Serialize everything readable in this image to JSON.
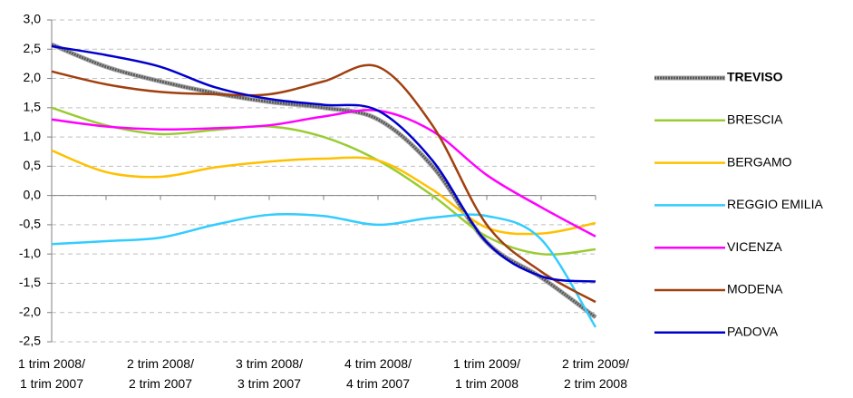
{
  "chart_data": {
    "type": "line",
    "categories": [
      "1 trim 2008/\n1 trim 2007",
      null,
      "2 trim 2008/\n2 trim 2007",
      null,
      "3 trim 2008/\n3 trim 2007",
      null,
      "4 trim 2008/\n4 trim 2007",
      null,
      "1 trim 2009/\n1 trim 2008",
      null,
      "2 trim 2009/\n2 trim 2008"
    ],
    "series": [
      {
        "name": "TREVISO",
        "color": "#595959",
        "values": [
          2.58,
          2.2,
          1.95,
          1.75,
          1.6,
          1.5,
          1.3,
          0.5,
          -0.8,
          -1.4,
          -2.08
        ]
      },
      {
        "name": "BRESCIA",
        "color": "#99cc33",
        "values": [
          1.5,
          1.2,
          1.05,
          1.12,
          1.18,
          1.0,
          0.6,
          0.0,
          -0.7,
          -1.0,
          -0.92
        ]
      },
      {
        "name": "BERGAMO",
        "color": "#ffc000",
        "values": [
          0.77,
          0.4,
          0.32,
          0.48,
          0.58,
          0.63,
          0.6,
          0.1,
          -0.55,
          -0.65,
          -0.47
        ]
      },
      {
        "name": "REGGIO EMILIA",
        "color": "#33ccff",
        "values": [
          -0.83,
          -0.78,
          -0.72,
          -0.5,
          -0.33,
          -0.35,
          -0.5,
          -0.38,
          -0.35,
          -0.75,
          -2.25
        ]
      },
      {
        "name": "VICENZA",
        "color": "#ff00ff",
        "values": [
          1.3,
          1.18,
          1.13,
          1.15,
          1.2,
          1.35,
          1.45,
          1.1,
          0.35,
          -0.2,
          -0.7
        ]
      },
      {
        "name": "MODENA",
        "color": "#a0400f",
        "values": [
          2.12,
          1.9,
          1.77,
          1.73,
          1.73,
          1.95,
          2.2,
          1.2,
          -0.5,
          -1.3,
          -1.82
        ]
      },
      {
        "name": "PADOVA",
        "color": "#0000cc",
        "values": [
          2.55,
          2.4,
          2.2,
          1.85,
          1.65,
          1.55,
          1.45,
          0.6,
          -0.8,
          -1.38,
          -1.47
        ]
      }
    ],
    "ylim": [
      -2.5,
      3.0
    ],
    "yticks": [
      {
        "value": 3.0,
        "label": "3,0"
      },
      {
        "value": 2.5,
        "label": "2,5"
      },
      {
        "value": 2.0,
        "label": "2,0"
      },
      {
        "value": 1.5,
        "label": "1,5"
      },
      {
        "value": 1.0,
        "label": "1,0"
      },
      {
        "value": 0.5,
        "label": "0,5"
      },
      {
        "value": 0.0,
        "label": "0,0"
      },
      {
        "value": -0.5,
        "label": "-0,5"
      },
      {
        "value": -1.0,
        "label": "-1,0"
      },
      {
        "value": -1.5,
        "label": "-1,5"
      },
      {
        "value": -2.0,
        "label": "-2,0"
      },
      {
        "value": -2.5,
        "label": "-2,5"
      }
    ],
    "grid": true,
    "legend": "right"
  }
}
